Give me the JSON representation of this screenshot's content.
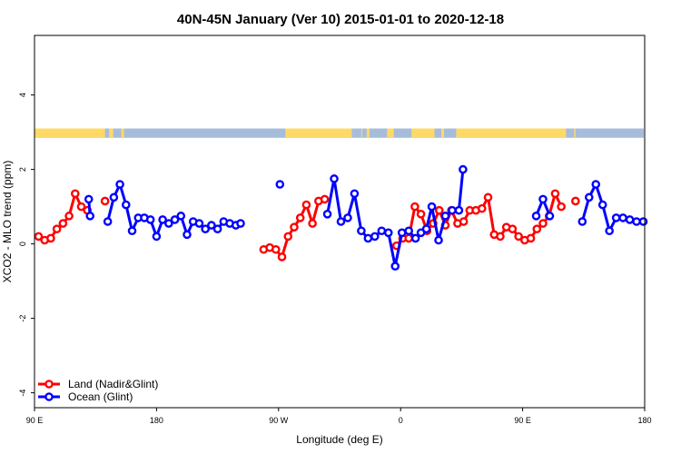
{
  "chart_data": {
    "type": "line",
    "title": "40N-45N January (Ver 10)   2015-01-01 to 2020-12-18",
    "xlabel": "Longitude (deg E)",
    "ylabel": "XCO2 - MLO trend (ppm)",
    "xlim": [
      90,
      540
    ],
    "ylim": [
      -4.4,
      5.6
    ],
    "x_ticks": [
      {
        "value": 90,
        "label": "90 E"
      },
      {
        "value": 180,
        "label": "180"
      },
      {
        "value": 270,
        "label": "90 W"
      },
      {
        "value": 360,
        "label": "0"
      },
      {
        "value": 450,
        "label": "90 E"
      },
      {
        "value": 540,
        "label": "180"
      }
    ],
    "y_ticks": [
      {
        "value": -4,
        "label": "-4"
      },
      {
        "value": -2,
        "label": "-2"
      },
      {
        "value": 0,
        "label": "0"
      },
      {
        "value": 2,
        "label": "2"
      },
      {
        "value": 4,
        "label": "4"
      }
    ],
    "grid": false,
    "legend": {
      "position": "bottom-left"
    },
    "land_sea_bar": {
      "y_range": [
        2.85,
        3.1
      ],
      "land_color": "#FFD966",
      "ocean_color": "#A7BCDB",
      "land_segments": [
        [
          90,
          142
        ],
        [
          145,
          148
        ],
        [
          154,
          156
        ],
        [
          275,
          324
        ],
        [
          331,
          331.6
        ],
        [
          335,
          337
        ],
        [
          350,
          355
        ],
        [
          368,
          385
        ],
        [
          390,
          392
        ],
        [
          401,
          482
        ],
        [
          488,
          489
        ]
      ]
    },
    "series": [
      {
        "name": "Land (Nadir&Glint)",
        "color": "#FF0000",
        "segments": [
          {
            "x": [
              93,
              97.5,
              102,
              106.5,
              111,
              115.5,
              120,
              124.5,
              129
            ],
            "y": [
              0.2,
              0.1,
              0.15,
              0.4,
              0.55,
              0.75,
              1.35,
              1.0,
              0.9
            ]
          },
          {
            "x": [
              142
            ],
            "y": [
              1.15
            ]
          },
          {
            "x": [
              259,
              263.5,
              268,
              272.5,
              277,
              281.5,
              286,
              290.5,
              295,
              299.5,
              304
            ],
            "y": [
              -0.15,
              -0.1,
              -0.15,
              -0.35,
              0.2,
              0.45,
              0.7,
              1.05,
              0.55,
              1.15,
              1.2
            ]
          },
          {
            "x": [
              357,
              361.5,
              366,
              370.5,
              375,
              379.5,
              384,
              388.5,
              393,
              397.5,
              402,
              406.5,
              411,
              415.5,
              420,
              424.5,
              429,
              433.5,
              438,
              442.5,
              447,
              451.5,
              456,
              460.5,
              465,
              469.5,
              474,
              478.5
            ],
            "y": [
              -0.05,
              0.15,
              0.15,
              1.0,
              0.8,
              0.35,
              0.55,
              0.9,
              0.5,
              0.9,
              0.55,
              0.6,
              0.9,
              0.9,
              0.95,
              1.25,
              0.25,
              0.2,
              0.45,
              0.4,
              0.2,
              0.1,
              0.15,
              0.4,
              0.55,
              0.75,
              1.35,
              1.0
            ]
          },
          {
            "x": [
              489
            ],
            "y": [
              1.15
            ]
          }
        ]
      },
      {
        "name": "Ocean (Glint)",
        "color": "#0000FF",
        "segments": [
          {
            "x": [
              130,
              131
            ],
            "y": [
              1.2,
              0.75
            ]
          },
          {
            "x": [
              144,
              148.5,
              153,
              157.5,
              162,
              166.5,
              171,
              175.5,
              180,
              184.5,
              189,
              193.5,
              198,
              202.5,
              207,
              211.5,
              216,
              220.5,
              225,
              229.5,
              234,
              238.5,
              242
            ],
            "y": [
              0.6,
              1.25,
              1.6,
              1.05,
              0.35,
              0.7,
              0.7,
              0.65,
              0.2,
              0.65,
              0.55,
              0.65,
              0.75,
              0.25,
              0.6,
              0.55,
              0.4,
              0.5,
              0.4,
              0.6,
              0.55,
              0.5,
              0.55
            ]
          },
          {
            "x": [
              271
            ],
            "y": [
              1.6
            ]
          },
          {
            "x": [
              306,
              311,
              316,
              321,
              326,
              331,
              336,
              341,
              346,
              351,
              356,
              361,
              366,
              371,
              375,
              379,
              383,
              388,
              393,
              398,
              403,
              406
            ],
            "y": [
              0.8,
              1.75,
              0.6,
              0.7,
              1.35,
              0.35,
              0.15,
              0.2,
              0.35,
              0.3,
              -0.6,
              0.3,
              0.35,
              0.15,
              0.3,
              0.4,
              1.0,
              0.1,
              0.75,
              0.9,
              0.9,
              2.0
            ]
          },
          {
            "x": [
              460,
              465,
              470
            ],
            "y": [
              0.75,
              1.2,
              0.75
            ]
          },
          {
            "x": [
              494,
              499,
              504,
              509,
              514,
              519,
              524,
              529,
              534,
              539
            ],
            "y": [
              0.6,
              1.25,
              1.6,
              1.05,
              0.35,
              0.7,
              0.7,
              0.65,
              0.6,
              0.6
            ]
          }
        ]
      }
    ]
  }
}
